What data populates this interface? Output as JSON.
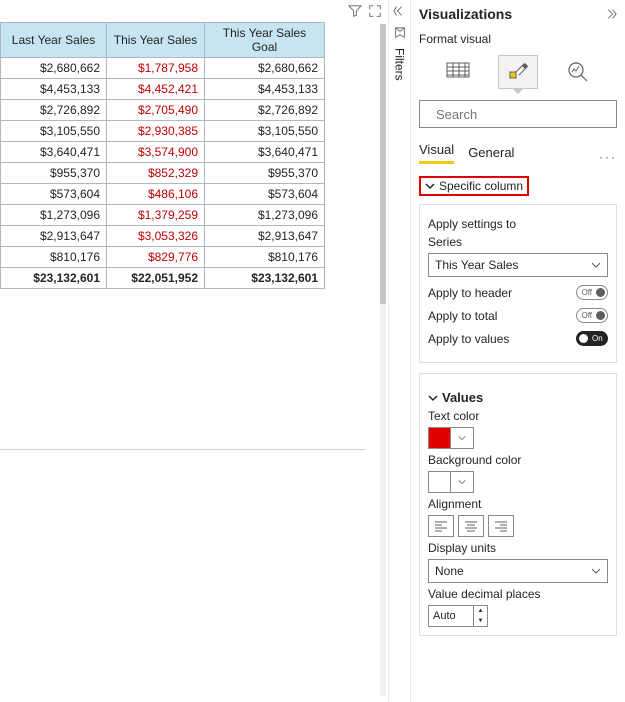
{
  "table": {
    "headers": [
      "Last Year Sales",
      "This Year Sales",
      "This Year Sales Goal"
    ],
    "header_bg": "#c7e4f2",
    "border_color": "#aeb8c4",
    "red_color": "#c00000",
    "rows": [
      [
        "$2,680,662",
        "$1,787,958",
        "$2,680,662"
      ],
      [
        "$4,453,133",
        "$4,452,421",
        "$4,453,133"
      ],
      [
        "$2,726,892",
        "$2,705,490",
        "$2,726,892"
      ],
      [
        "$3,105,550",
        "$2,930,385",
        "$3,105,550"
      ],
      [
        "$3,640,471",
        "$3,574,900",
        "$3,640,471"
      ],
      [
        "$955,370",
        "$852,329",
        "$955,370"
      ],
      [
        "$573,604",
        "$486,106",
        "$573,604"
      ],
      [
        "$1,273,096",
        "$1,379,259",
        "$1,273,096"
      ],
      [
        "$2,913,647",
        "$3,053,326",
        "$2,913,647"
      ],
      [
        "$810,176",
        "$829,776",
        "$810,176"
      ]
    ],
    "totals": [
      "$23,132,601",
      "$22,051,952",
      "$23,132,601"
    ]
  },
  "filters_label": "Filters",
  "viz": {
    "title": "Visualizations",
    "subtitle": "Format visual",
    "search_placeholder": "Search",
    "tabs": {
      "visual": "Visual",
      "general": "General"
    },
    "specific_column": "Specific column",
    "apply_settings": "Apply settings to",
    "series_label": "Series",
    "series_value": "This Year Sales",
    "apply_header": "Apply to header",
    "apply_total": "Apply to total",
    "apply_values": "Apply to values",
    "off": "Off",
    "on": "On",
    "values_section": "Values",
    "text_color": "Text color",
    "text_color_value": "#e00000",
    "bg_color": "Background color",
    "bg_color_value": "#ffffff",
    "alignment": "Alignment",
    "display_units": "Display units",
    "display_units_value": "None",
    "decimal": "Value decimal places",
    "decimal_value": "Auto"
  }
}
